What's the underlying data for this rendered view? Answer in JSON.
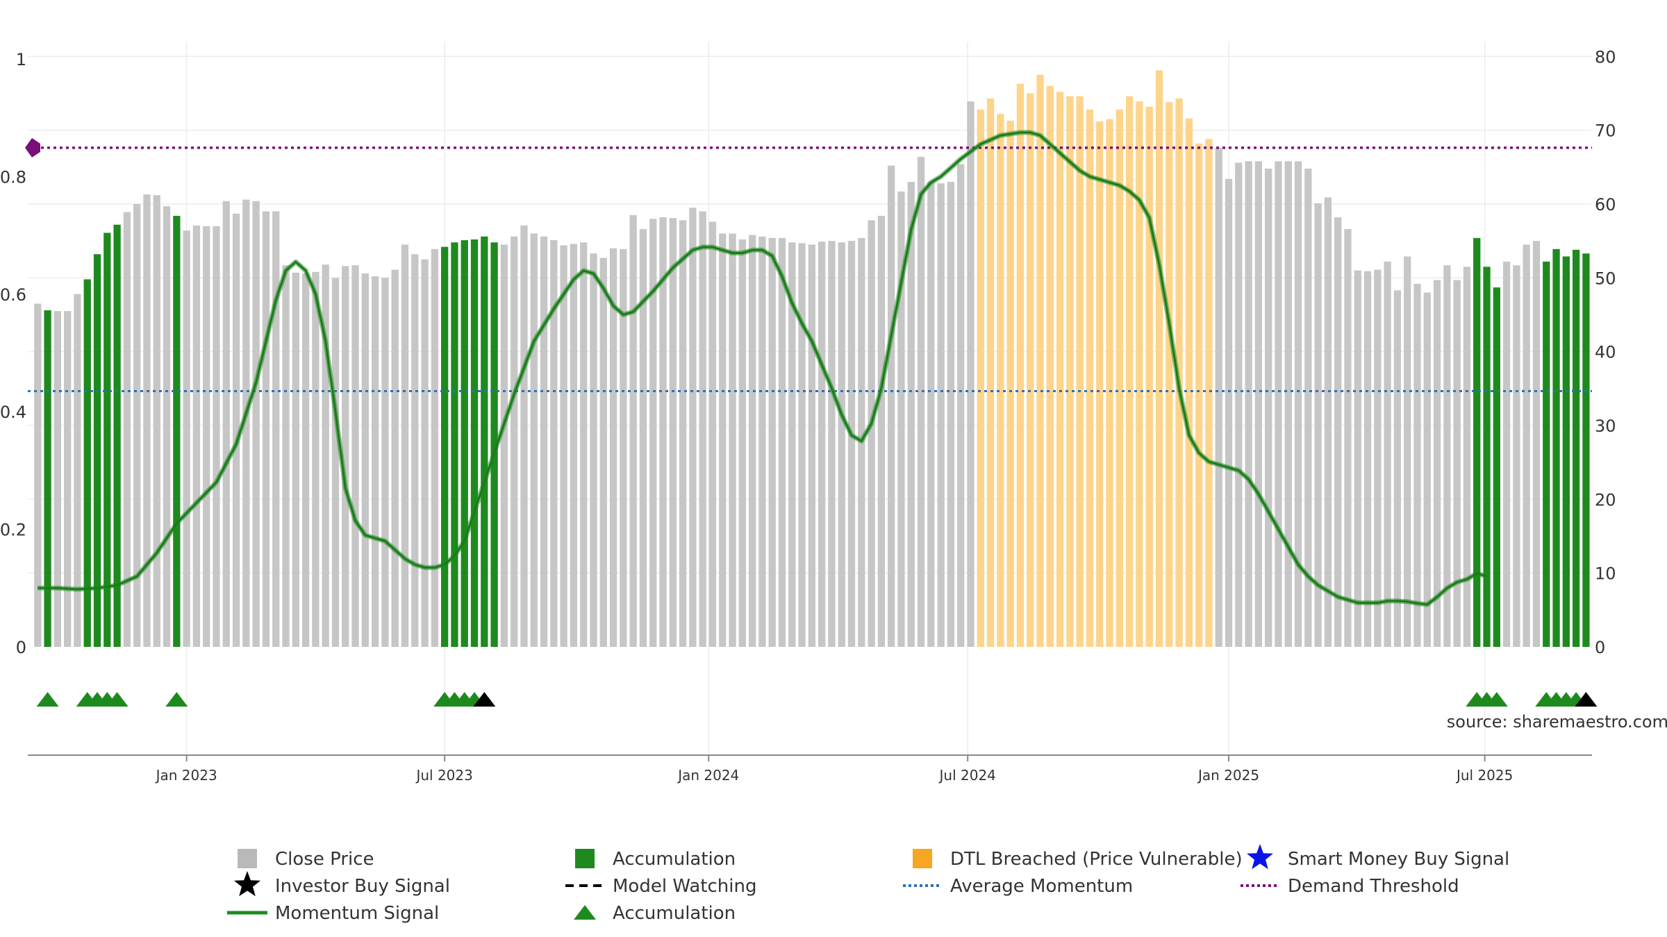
{
  "chart_data": {
    "type": "bar",
    "title": "",
    "source": "source: sharemaestro.com",
    "left_axis": {
      "ylim": [
        0,
        1
      ],
      "ticks": [
        "0",
        "0.2",
        "0.4",
        "0.6",
        "0.8",
        "1"
      ],
      "tick_values": [
        0,
        0.2,
        0.4,
        0.6,
        0.8,
        1.0
      ]
    },
    "right_axis": {
      "ylim": [
        0,
        82
      ],
      "ticks": [
        "0",
        "10",
        "20",
        "30",
        "40",
        "50",
        "60",
        "70",
        "80"
      ],
      "tick_values": [
        0,
        10,
        20,
        30,
        40,
        50,
        60,
        70,
        80
      ]
    },
    "x_ticks": [
      {
        "label": "Jan 2023",
        "week": 15
      },
      {
        "label": "Jul 2023",
        "week": 41
      },
      {
        "label": "Jan 2024",
        "week": 67.6
      },
      {
        "label": "Jul 2024",
        "week": 93.7
      },
      {
        "label": "Jan 2025",
        "week": 120
      },
      {
        "label": "Jul 2025",
        "week": 145.8
      }
    ],
    "x_range": [
      -1,
      156.6
    ],
    "close_prices": [
      46.5,
      45.6,
      45.5,
      45.5,
      47.8,
      49.8,
      53.2,
      56.1,
      57.2,
      58.9,
      60.0,
      61.3,
      61.2,
      59.7,
      58.4,
      56.4,
      57.1,
      57.0,
      57.0,
      60.4,
      58.7,
      60.6,
      60.4,
      59.0,
      59.0,
      51.7,
      50.7,
      50.6,
      50.8,
      51.8,
      50.0,
      51.6,
      51.7,
      50.6,
      50.2,
      50.0,
      51.1,
      54.5,
      53.2,
      52.5,
      53.9,
      54.2,
      54.8,
      55.1,
      55.2,
      55.6,
      54.8,
      54.5,
      55.6,
      57.1,
      56.0,
      55.6,
      55.1,
      54.4,
      54.6,
      54.8,
      53.3,
      52.7,
      54.0,
      53.9,
      58.5,
      56.6,
      58.0,
      58.2,
      58.1,
      57.8,
      59.5,
      59.0,
      57.6,
      56.0,
      56.0,
      55.2,
      55.8,
      55.6,
      55.4,
      55.4,
      54.8,
      54.7,
      54.5,
      54.9,
      55.0,
      54.8,
      55.0,
      55.4,
      57.8,
      58.4,
      65.2,
      61.7,
      63.0,
      66.4,
      63.0,
      62.8,
      63.0,
      65.4,
      73.9,
      72.8,
      74.3,
      72.2,
      71.3,
      76.3,
      75.0,
      77.5,
      76.0,
      75.2,
      74.6,
      74.6,
      72.8,
      71.2,
      71.5,
      72.8,
      74.6,
      73.9,
      73.2,
      78.1,
      73.8,
      74.3,
      71.6,
      68.2,
      68.8,
      67.6,
      63.4,
      65.6,
      65.8,
      65.8,
      64.8,
      65.8,
      65.8,
      65.8,
      64.8,
      60.1,
      60.9,
      58.2,
      56.6,
      51.0,
      50.9,
      51.1,
      52.2,
      48.3,
      52.9,
      49.2,
      48.0,
      49.7,
      51.7,
      49.7,
      51.5,
      55.4,
      51.5,
      48.7,
      52.2,
      51.7,
      54.5,
      55.0,
      52.2,
      53.9,
      52.9,
      53.8,
      53.3
    ],
    "series": [
      {
        "name": "Close Price",
        "color": "#c6c6c6"
      },
      {
        "name": "Accumulation",
        "color": "#1e8a1e",
        "weeks": [
          1,
          5,
          6,
          7,
          8,
          14,
          41,
          42,
          43,
          44,
          45,
          46,
          145,
          146,
          147,
          152,
          153,
          154,
          155,
          156
        ]
      },
      {
        "name": "DTL Breached (Price Vulnerable)",
        "color": "#fdd48a",
        "weeks": [
          95,
          96,
          97,
          98,
          99,
          100,
          101,
          102,
          103,
          104,
          105,
          106,
          107,
          108,
          109,
          110,
          111,
          112,
          113,
          114,
          115,
          116,
          117,
          118
        ]
      },
      {
        "name": "Momentum Signal",
        "color": "#1e8a1e",
        "points": [
          [
            0,
            0.1
          ],
          [
            2,
            0.1
          ],
          [
            4,
            0.098
          ],
          [
            6,
            0.1
          ],
          [
            8,
            0.105
          ],
          [
            10,
            0.12
          ],
          [
            12,
            0.16
          ],
          [
            14,
            0.21
          ],
          [
            16,
            0.245
          ],
          [
            18,
            0.28
          ],
          [
            20,
            0.345
          ],
          [
            22,
            0.45
          ],
          [
            24,
            0.59
          ],
          [
            25,
            0.64
          ],
          [
            26,
            0.655
          ],
          [
            27,
            0.64
          ],
          [
            28,
            0.6
          ],
          [
            29,
            0.52
          ],
          [
            30,
            0.4
          ],
          [
            31,
            0.27
          ],
          [
            32,
            0.215
          ],
          [
            33,
            0.19
          ],
          [
            34,
            0.185
          ],
          [
            35,
            0.18
          ],
          [
            36,
            0.165
          ],
          [
            37,
            0.15
          ],
          [
            38,
            0.14
          ],
          [
            39,
            0.135
          ],
          [
            40,
            0.135
          ],
          [
            41,
            0.14
          ],
          [
            42,
            0.155
          ],
          [
            43,
            0.18
          ],
          [
            44,
            0.23
          ],
          [
            46,
            0.33
          ],
          [
            48,
            0.43
          ],
          [
            50,
            0.52
          ],
          [
            52,
            0.575
          ],
          [
            54,
            0.625
          ],
          [
            55,
            0.64
          ],
          [
            56,
            0.635
          ],
          [
            57,
            0.61
          ],
          [
            58,
            0.58
          ],
          [
            59,
            0.565
          ],
          [
            60,
            0.57
          ],
          [
            62,
            0.605
          ],
          [
            64,
            0.645
          ],
          [
            66,
            0.675
          ],
          [
            67,
            0.68
          ],
          [
            68,
            0.68
          ],
          [
            69,
            0.675
          ],
          [
            70,
            0.67
          ],
          [
            71,
            0.67
          ],
          [
            72,
            0.675
          ],
          [
            73,
            0.675
          ],
          [
            74,
            0.665
          ],
          [
            75,
            0.63
          ],
          [
            76,
            0.585
          ],
          [
            77,
            0.55
          ],
          [
            78,
            0.52
          ],
          [
            79,
            0.48
          ],
          [
            80,
            0.44
          ],
          [
            81,
            0.395
          ],
          [
            82,
            0.36
          ],
          [
            83,
            0.35
          ],
          [
            84,
            0.38
          ],
          [
            85,
            0.44
          ],
          [
            86,
            0.53
          ],
          [
            87,
            0.62
          ],
          [
            88,
            0.71
          ],
          [
            89,
            0.77
          ],
          [
            90,
            0.79
          ],
          [
            91,
            0.8
          ],
          [
            92,
            0.815
          ],
          [
            93,
            0.83
          ],
          [
            95,
            0.855
          ],
          [
            97,
            0.87
          ],
          [
            99,
            0.875
          ],
          [
            100,
            0.875
          ],
          [
            101,
            0.87
          ],
          [
            102,
            0.855
          ],
          [
            103,
            0.84
          ],
          [
            104,
            0.825
          ],
          [
            105,
            0.81
          ],
          [
            106,
            0.8
          ],
          [
            107,
            0.795
          ],
          [
            108,
            0.79
          ],
          [
            109,
            0.785
          ],
          [
            110,
            0.775
          ],
          [
            111,
            0.76
          ],
          [
            112,
            0.73
          ],
          [
            113,
            0.65
          ],
          [
            114,
            0.55
          ],
          [
            115,
            0.44
          ],
          [
            116,
            0.36
          ],
          [
            117,
            0.33
          ],
          [
            118,
            0.315
          ],
          [
            119,
            0.31
          ],
          [
            120,
            0.305
          ],
          [
            121,
            0.3
          ],
          [
            122,
            0.285
          ],
          [
            123,
            0.26
          ],
          [
            124,
            0.23
          ],
          [
            125,
            0.2
          ],
          [
            126,
            0.17
          ],
          [
            127,
            0.14
          ],
          [
            128,
            0.12
          ],
          [
            129,
            0.105
          ],
          [
            130,
            0.095
          ],
          [
            131,
            0.085
          ],
          [
            132,
            0.08
          ],
          [
            133,
            0.075
          ],
          [
            134,
            0.075
          ],
          [
            135,
            0.075
          ],
          [
            136,
            0.078
          ],
          [
            137,
            0.078
          ],
          [
            138,
            0.077
          ],
          [
            139,
            0.074
          ],
          [
            140,
            0.072
          ],
          [
            141,
            0.085
          ],
          [
            142,
            0.1
          ],
          [
            143,
            0.11
          ],
          [
            144,
            0.115
          ],
          [
            145,
            0.125
          ],
          [
            146,
            0.12
          ]
        ]
      },
      {
        "name": "Average Momentum",
        "color": "#2a72b4",
        "value": 0.435
      },
      {
        "name": "Demand Threshold",
        "color": "#7a0f7a",
        "value": 0.849
      }
    ],
    "accumulation_markers": {
      "color": "#1e8a1e",
      "weeks": [
        1,
        5,
        6,
        7,
        8,
        14,
        41,
        42,
        43,
        44,
        145,
        146,
        147,
        152,
        153,
        154,
        155
      ]
    },
    "investor_buy_markers": {
      "color": "#000000",
      "weeks": [
        45,
        156
      ]
    },
    "legend": {
      "position": "bottom-center",
      "items": [
        {
          "label": "Close Price",
          "symbol": "square",
          "color": "#b9b9b9"
        },
        {
          "label": "Accumulation",
          "symbol": "square",
          "color": "#1e8a1e"
        },
        {
          "label": "DTL Breached (Price Vulnerable)",
          "symbol": "square",
          "color": "#f6a623"
        },
        {
          "label": "Smart Money Buy Signal",
          "symbol": "star",
          "color": "#0a14e6"
        },
        {
          "label": "Investor Buy Signal",
          "symbol": "star",
          "color": "#000000"
        },
        {
          "label": "Model Watching",
          "symbol": "dashed",
          "color": "#000000"
        },
        {
          "label": "Average Momentum",
          "symbol": "dotted",
          "color": "#2a72b4"
        },
        {
          "label": "Demand Threshold",
          "symbol": "dotted",
          "color": "#7a0f7a"
        },
        {
          "label": "Momentum Signal",
          "symbol": "line",
          "color": "#1e8a1e"
        },
        {
          "label": "Accumulation",
          "symbol": "triangle",
          "color": "#1e8a1e"
        }
      ]
    }
  }
}
